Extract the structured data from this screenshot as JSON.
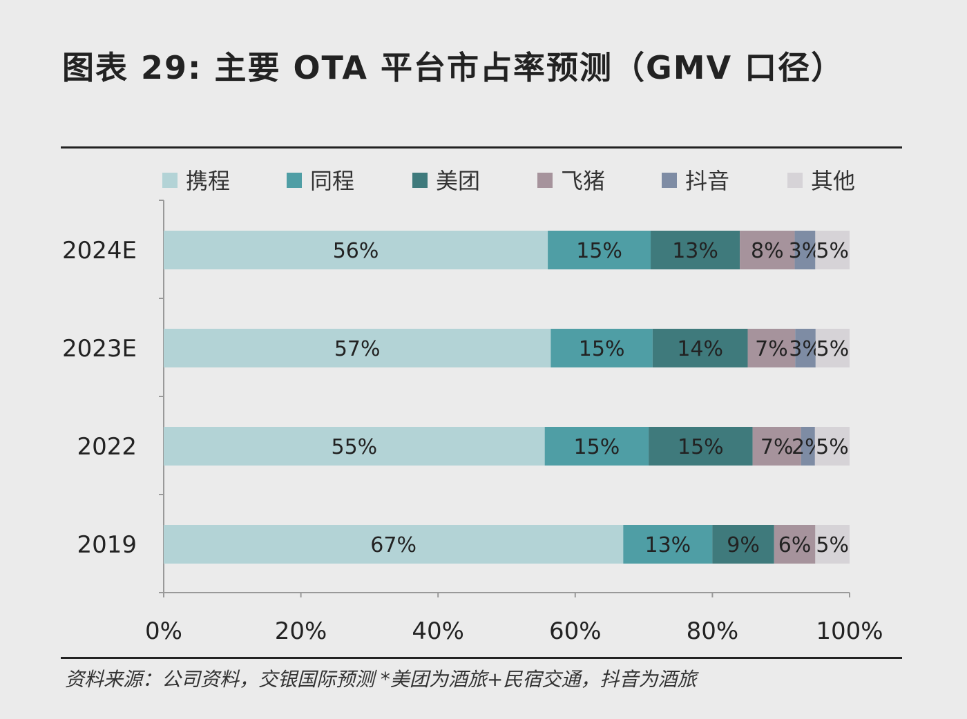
{
  "chart_data": {
    "type": "bar",
    "orientation": "horizontal",
    "stacked": "percent",
    "title": "图表 29: 主要 OTA 平台市占率预测（GMV 口径）",
    "categories": [
      "2024E",
      "2023E",
      "2022",
      "2019"
    ],
    "series": [
      {
        "name": "携程",
        "color": "#b3d3d6",
        "values": [
          56,
          57,
          55,
          67
        ]
      },
      {
        "name": "同程",
        "color": "#4f9ea5",
        "values": [
          15,
          15,
          15,
          13
        ]
      },
      {
        "name": "美团",
        "color": "#3f7a7c",
        "values": [
          13,
          14,
          15,
          9
        ]
      },
      {
        "name": "飞猪",
        "color": "#a6939c",
        "values": [
          8,
          7,
          7,
          6
        ]
      },
      {
        "name": "抖音",
        "color": "#7e8ca4",
        "values": [
          3,
          3,
          2,
          0
        ]
      },
      {
        "name": "其他",
        "color": "#d6d3d7",
        "values": [
          5,
          5,
          5,
          5
        ]
      }
    ],
    "xlim": [
      0,
      100
    ],
    "xticks": [
      "0%",
      "20%",
      "40%",
      "60%",
      "80%",
      "100%"
    ],
    "xlabel": "",
    "ylabel": "",
    "legend": "top",
    "grid": false
  },
  "footnote": "资料来源：公司资料，交银国际预测   *美团为酒旅+民宿交通，抖音为酒旅"
}
